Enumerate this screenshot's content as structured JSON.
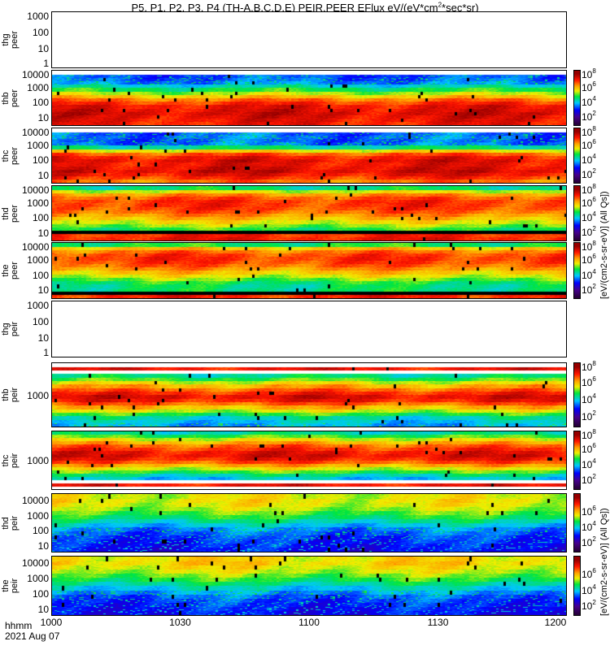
{
  "chart_data": {
    "type": "heatmap",
    "title": "P5, P1, P2, P3, P4 (TH-A,B,C,D,E) PEIR,PEER EFlux eV/(eV*cm^2*sec*sr)",
    "title_main": "P5, P1, P2, P3, P4 (TH-A,B,C,D,E) PEIR,PEER EFlux eV/(eV*cm",
    "title_sup": "2",
    "title_end": "*sec*sr)",
    "xlabel": "hhmm",
    "date": "2021 Aug 07",
    "x_ticks": [
      "1000",
      "1030",
      "1100",
      "1130",
      "1200"
    ],
    "xlim_minutes": [
      0,
      120
    ],
    "colorbar": {
      "scale": "log",
      "range": [
        1,
        8
      ],
      "tick_base": "10",
      "unit_label_peer": "[eV/(cm2-s-sr-eV)] (All Qs])",
      "unit_label_peir": "[eV/(cm2-s-sr-eV)] (All Qs])"
    },
    "panels": [
      {
        "probe": "thg",
        "species": "peer",
        "ylim": [
          0.63,
          2000
        ],
        "yticks": [
          "1000",
          "100",
          "10",
          "1"
        ],
        "ytick_vals": [
          1000,
          100,
          10,
          1
        ],
        "has_data": false,
        "cbar_ticks": [],
        "profile": []
      },
      {
        "probe": "thb",
        "species": "peer",
        "ylim": [
          2.7,
          15000
        ],
        "yticks": [
          "10000",
          "1000",
          "100",
          "10"
        ],
        "ytick_vals": [
          10000,
          1000,
          100,
          10
        ],
        "has_data": true,
        "cbar_ticks": [
          "8",
          "6",
          "4",
          "2"
        ],
        "profile": [
          null,
          3.3,
          3.4,
          3.6,
          4.2,
          4.8,
          5.4,
          6.0,
          6.6,
          7.0,
          7.3,
          7.4,
          7.5,
          7.4,
          7.3,
          7.2
        ]
      },
      {
        "probe": "thc",
        "species": "peer",
        "ylim": [
          2.7,
          15000
        ],
        "yticks": [
          "10000",
          "1000",
          "100",
          "10"
        ],
        "ytick_vals": [
          10000,
          1000,
          100,
          10
        ],
        "has_data": true,
        "cbar_ticks": [
          "8",
          "6",
          "4",
          "2"
        ],
        "profile": [
          null,
          3.4,
          3.5,
          3.4,
          3.5,
          4.5,
          5.8,
          6.8,
          7.2,
          7.4,
          7.3,
          7.4,
          7.5,
          7.3,
          7.0,
          6.6
        ]
      },
      {
        "probe": "thd",
        "species": "peer",
        "ylim": [
          2.7,
          15000
        ],
        "yticks": [
          "10000",
          "1000",
          "100",
          "10"
        ],
        "ytick_vals": [
          10000,
          1000,
          100,
          10
        ],
        "has_data": true,
        "cbar_ticks": [
          "8",
          "6",
          "4",
          "2"
        ],
        "profile": [
          4.6,
          5.6,
          6.4,
          6.8,
          7.0,
          7.0,
          6.9,
          6.7,
          6.4,
          6.1,
          5.7,
          5.3,
          4.9,
          0,
          7.1,
          7.2
        ]
      },
      {
        "probe": "the",
        "species": "peer",
        "ylim": [
          2.7,
          15000
        ],
        "yticks": [
          "10000",
          "1000",
          "100",
          "10"
        ],
        "ytick_vals": [
          10000,
          1000,
          100,
          10
        ],
        "has_data": true,
        "cbar_ticks": [
          "8",
          "6",
          "4",
          "2"
        ],
        "profile": [
          4.8,
          6.0,
          6.6,
          6.9,
          7.0,
          6.9,
          6.7,
          6.4,
          6.0,
          5.6,
          5.2,
          4.8,
          4.6,
          4.6,
          0,
          7.1
        ]
      },
      {
        "probe": "thg",
        "species": "peir",
        "ylim": [
          0.63,
          2000
        ],
        "yticks": [
          "1000",
          "100",
          "10",
          "1"
        ],
        "ytick_vals": [
          1000,
          100,
          10,
          1
        ],
        "has_data": false,
        "cbar_ticks": [],
        "profile": []
      },
      {
        "probe": "thb",
        "species": "peir",
        "ylim": [
          150,
          7000
        ],
        "yticks": [
          "1000"
        ],
        "ytick_vals": [
          1000
        ],
        "has_data": true,
        "cbar_ticks": [
          "8",
          "6",
          "4",
          "2"
        ],
        "profile": [
          null,
          7.3,
          null,
          4.5,
          5.0,
          5.6,
          6.2,
          6.7,
          7.1,
          7.4,
          7.2,
          6.7,
          6.1,
          5.5,
          4.9,
          4.3,
          4.0,
          3.8
        ]
      },
      {
        "probe": "thc",
        "species": "peir",
        "ylim": [
          150,
          7000
        ],
        "yticks": [
          "1000"
        ],
        "ytick_vals": [
          1000
        ],
        "has_data": true,
        "cbar_ticks": [
          "8",
          "6",
          "4",
          "2"
        ],
        "profile": [
          4.4,
          5.0,
          5.6,
          6.2,
          6.7,
          7.0,
          7.3,
          7.4,
          7.2,
          6.8,
          6.2,
          5.6,
          5.0,
          4.4,
          4.0,
          null,
          7.3,
          null
        ]
      },
      {
        "probe": "thd",
        "species": "peir",
        "ylim": [
          3.7,
          30000
        ],
        "yticks": [
          "10000",
          "1000",
          "100",
          "10"
        ],
        "ytick_vals": [
          10000,
          1000,
          100,
          10
        ],
        "has_data": true,
        "cbar_ticks": [
          "6",
          "4",
          "2"
        ],
        "profile": [
          5.6,
          5.7,
          5.6,
          5.4,
          5.1,
          4.8,
          4.4,
          4.0,
          3.6,
          3.4,
          3.2,
          3.1,
          3.0,
          2.9
        ]
      },
      {
        "probe": "the",
        "species": "peir",
        "ylim": [
          3.7,
          30000
        ],
        "yticks": [
          "10000",
          "1000",
          "100",
          "10"
        ],
        "ytick_vals": [
          10000,
          1000,
          100,
          10
        ],
        "has_data": true,
        "cbar_ticks": [
          "6",
          "4",
          "2"
        ],
        "profile": [
          5.8,
          5.9,
          5.7,
          5.5,
          5.2,
          4.9,
          4.5,
          4.1,
          3.7,
          3.4,
          3.2,
          3.1,
          3.0,
          2.9
        ]
      }
    ]
  }
}
